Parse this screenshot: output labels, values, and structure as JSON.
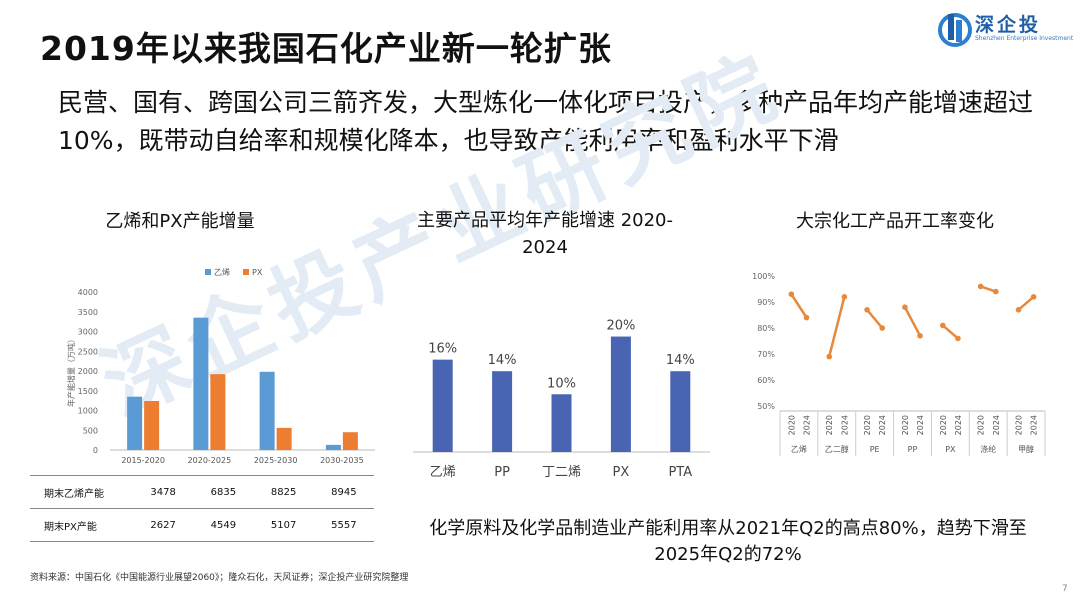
{
  "page": {
    "title": "2019年以来我国石化产业新一轮扩张",
    "subtitle": "民营、国有、跨国公司三箭齐发，大型炼化一体化项目投产，多种产品年均产能增速超过10%，既带动自给率和规模化降本，也导致产能利用率和盈利水平下滑",
    "logo_name": "深企投",
    "logo_sub": "Shenzhen Enterprise Investment",
    "watermark": "深企投产业研究院",
    "note": "化学原料及化学品制造业产能利用率从2021年Q2的高点80%，趋势下滑至2025年Q2的72%",
    "source": "资料来源：中国石化《中国能源行业展望2060》；隆众石化，天风证券；深企投产业研究院整理",
    "page_number": "7"
  },
  "colors": {
    "blue": "#5b9bd5",
    "orange": "#ed7d31",
    "navy": "#4a64b4",
    "line": "#e8883a"
  },
  "chart_data": [
    {
      "type": "bar",
      "title": "乙烯和PX产能增量",
      "ylabel": "年产能增量（万吨）",
      "categories": [
        "2015-2020",
        "2020-2025",
        "2025-2030",
        "2030-2035"
      ],
      "series": [
        {
          "name": "乙烯",
          "values": [
            1350,
            3350,
            1980,
            130
          ]
        },
        {
          "name": "PX",
          "values": [
            1240,
            1920,
            560,
            450
          ]
        }
      ],
      "ylim": [
        0,
        4000
      ],
      "yticks": [
        "0",
        "500",
        "1000",
        "1500",
        "2000",
        "2500",
        "3000",
        "3500",
        "4000"
      ],
      "legend": "top",
      "grid": false,
      "table": {
        "rows": [
          {
            "label": "期末乙烯产能",
            "values": [
              "3478",
              "6835",
              "8825",
              "8945"
            ]
          },
          {
            "label": "期末PX产能",
            "values": [
              "2627",
              "4549",
              "5107",
              "5557"
            ]
          }
        ]
      }
    },
    {
      "type": "bar",
      "title": "主要产品平均年产能增速 2020-2024",
      "categories": [
        "乙烯",
        "PP",
        "丁二烯",
        "PX",
        "PTA"
      ],
      "values": [
        16,
        14,
        10,
        20,
        14
      ],
      "labels": [
        "16%",
        "14%",
        "10%",
        "20%",
        "14%"
      ],
      "ylim": [
        0,
        22
      ],
      "grid": false
    },
    {
      "type": "line",
      "title": "大宗化工产品开工率变化",
      "groups": [
        "乙烯",
        "乙二醇",
        "PE",
        "PP",
        "PX",
        "涤纶",
        "甲醇"
      ],
      "x_labels": [
        "2020",
        "2024"
      ],
      "values": [
        [
          93,
          84
        ],
        [
          69,
          92
        ],
        [
          87,
          80
        ],
        [
          88,
          77
        ],
        [
          81,
          76
        ],
        [
          96,
          94
        ],
        [
          87,
          92
        ]
      ],
      "ylim": [
        50,
        100
      ],
      "yticks": [
        "50%",
        "60%",
        "70%",
        "80%",
        "90%",
        "100%"
      ],
      "grid": false
    }
  ]
}
